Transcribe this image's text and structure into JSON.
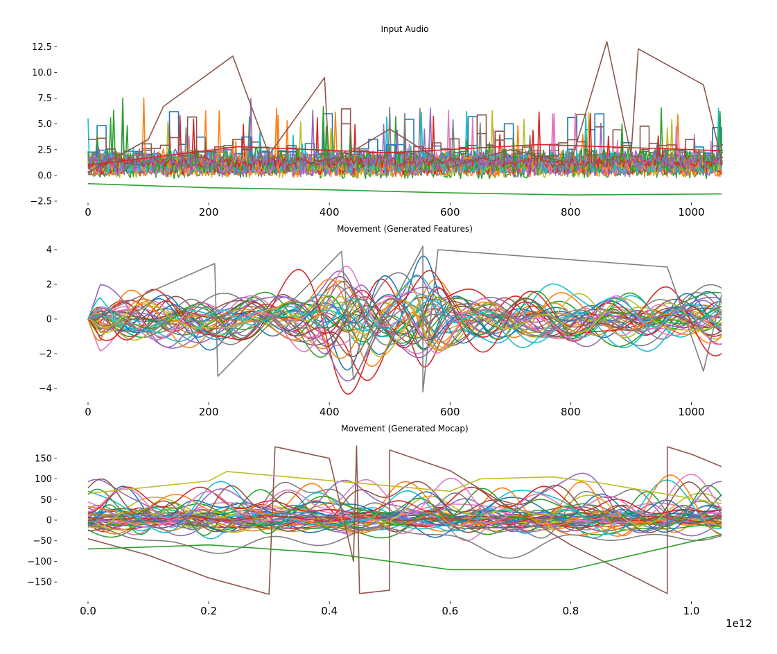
{
  "palette": [
    "#1f77b4",
    "#ff7f0e",
    "#2ca02c",
    "#d62728",
    "#9467bd",
    "#8c564b",
    "#e377c2",
    "#7f7f7f",
    "#bcbd22",
    "#17becf"
  ],
  "chart_data": [
    {
      "type": "line",
      "title": "Input Audio",
      "xlabel": "",
      "ylabel": "",
      "xlim": [
        0,
        1050
      ],
      "ylim": [
        -2.5,
        13.0
      ],
      "x_ticks": [
        "0",
        "200",
        "400",
        "600",
        "800",
        "1000"
      ],
      "y_ticks": [
        "−2.5",
        "0.0",
        "2.5",
        "5.0",
        "7.5",
        "10.0",
        "12.5"
      ],
      "grid": false,
      "style": "dense multi-series noise (many overlapping channels, some stepped)",
      "series": [
        {
          "points": [
            [
              0,
              0.3
            ],
            [
              100,
              3.5
            ],
            [
              125,
              6.7
            ],
            [
              240,
              11.6
            ],
            [
              300,
              2.0
            ],
            [
              392,
              9.5
            ],
            [
              400,
              1.0
            ],
            [
              500,
              4.5
            ],
            [
              600,
              0.8
            ],
            [
              700,
              2.5
            ],
            [
              800,
              1.2
            ],
            [
              860,
              13.2
            ],
            [
              900,
              2.0
            ],
            [
              912,
              12.3
            ],
            [
              1020,
              8.8
            ],
            [
              1050,
              1.5
            ]
          ]
        },
        {
          "points": [
            [
              0,
              -0.8
            ],
            [
              200,
              -1.2
            ],
            [
              400,
              -1.4
            ],
            [
              600,
              -1.7
            ],
            [
              800,
              -1.9
            ],
            [
              1050,
              -1.8
            ]
          ]
        },
        {
          "points": [
            [
              0,
              1.0
            ],
            [
              250,
              2.8
            ],
            [
              500,
              2.2
            ],
            [
              750,
              3.0
            ],
            [
              1050,
              2.4
            ]
          ]
        }
      ]
    },
    {
      "type": "line",
      "title": "Movement (Generated Features)",
      "xlabel": "",
      "ylabel": "",
      "xlim": [
        0,
        1050
      ],
      "ylim": [
        -4.4,
        4.4
      ],
      "x_ticks": [
        "0",
        "200",
        "400",
        "600",
        "800",
        "1000"
      ],
      "y_ticks": [
        "−4",
        "−2",
        "0",
        "2",
        "4"
      ],
      "grid": false,
      "style": "dense multi-series smooth curves starting near 0",
      "series": [
        {
          "points": [
            [
              0,
              0
            ],
            [
              210,
              3.2
            ],
            [
              215,
              -3.3
            ],
            [
              420,
              3.9
            ],
            [
              440,
              -3.5
            ],
            [
              555,
              4.2
            ],
            [
              555,
              -4.2
            ],
            [
              580,
              4.0
            ],
            [
              960,
              3.0
            ],
            [
              1020,
              -3.0
            ],
            [
              1050,
              1.4
            ]
          ]
        }
      ]
    },
    {
      "type": "line",
      "title": "Movement (Generated Mocap)",
      "xlabel": "",
      "ylabel": "",
      "x_offset_label": "1e12",
      "xlim": [
        0,
        1.05
      ],
      "ylim": [
        -185,
        185
      ],
      "x_ticks": [
        "0.0",
        "0.2",
        "0.4",
        "0.6",
        "0.8",
        "1.0"
      ],
      "y_ticks": [
        "−150",
        "−100",
        "−50",
        "0",
        "50",
        "100",
        "150"
      ],
      "grid": false,
      "style": "dense multi-series smooth curves with wrapping jumps",
      "series": [
        {
          "points": [
            [
              0,
              -45
            ],
            [
              0.1,
              -85
            ],
            [
              0.2,
              -140
            ],
            [
              0.3,
              -180
            ],
            [
              0.31,
              178
            ],
            [
              0.4,
              150
            ],
            [
              0.44,
              -100
            ],
            [
              0.445,
              180
            ],
            [
              0.45,
              -178
            ],
            [
              0.5,
              -170
            ],
            [
              0.5,
              170
            ],
            [
              0.6,
              120
            ],
            [
              0.8,
              -60
            ],
            [
              0.96,
              -178
            ],
            [
              0.96,
              178
            ],
            [
              1.0,
              160
            ],
            [
              1.05,
              130
            ]
          ]
        },
        {
          "points": [
            [
              0,
              65
            ],
            [
              0.1,
              80
            ],
            [
              0.2,
              95
            ],
            [
              0.23,
              118
            ],
            [
              0.6,
              70
            ],
            [
              0.65,
              100
            ],
            [
              0.77,
              105
            ],
            [
              0.85,
              90
            ],
            [
              1.05,
              40
            ]
          ]
        },
        {
          "points": [
            [
              0,
              -70
            ],
            [
              0.2,
              -60
            ],
            [
              0.4,
              -80
            ],
            [
              0.6,
              -120
            ],
            [
              0.8,
              -120
            ],
            [
              1.05,
              -35
            ]
          ]
        }
      ]
    }
  ]
}
